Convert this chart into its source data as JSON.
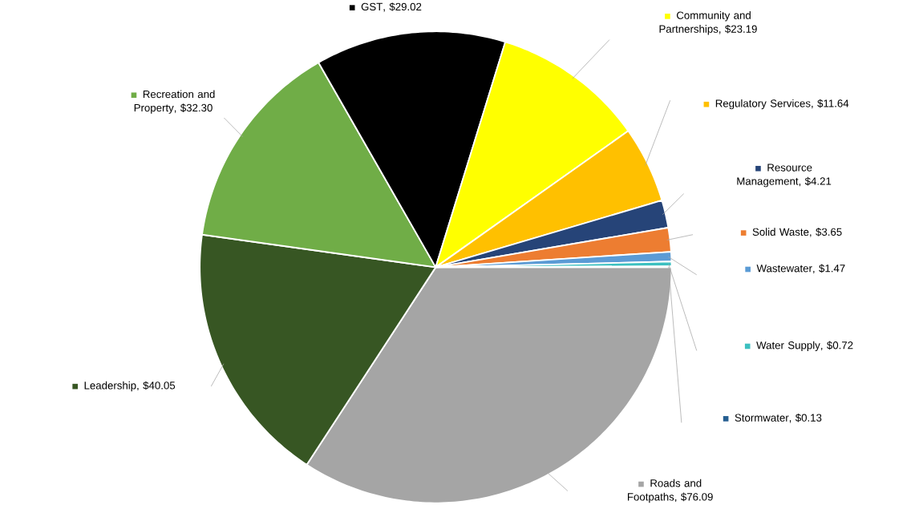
{
  "chart_data": {
    "type": "pie",
    "categories": [
      "Roads and Footpaths",
      "Leadership",
      "Recreation and Property",
      "GST",
      "Community and Partnerships",
      "Regulatory Services",
      "Resource Management",
      "Solid Waste",
      "Wastewater",
      "Water Supply",
      "Stormwater"
    ],
    "values": [
      76.09,
      40.05,
      32.3,
      29.02,
      23.19,
      11.64,
      4.21,
      3.65,
      1.47,
      0.72,
      0.13
    ],
    "value_labels": [
      ", $76.09",
      ", $40.05",
      ", $32.30",
      ", $29.02",
      ", $23.19",
      ", $11.64",
      ", $4.21",
      ", $3.65",
      ", $1.47",
      ", $0.72",
      ", $0.13"
    ],
    "legend": "right",
    "colors": [
      "#a5a5a5",
      "#375623",
      "#70ad47",
      "#000000",
      "#ffff00",
      "#ffc000",
      "#264478",
      "#ed7d31",
      "#5b9bd5",
      "#3cc0c0",
      "#255e91"
    ]
  }
}
